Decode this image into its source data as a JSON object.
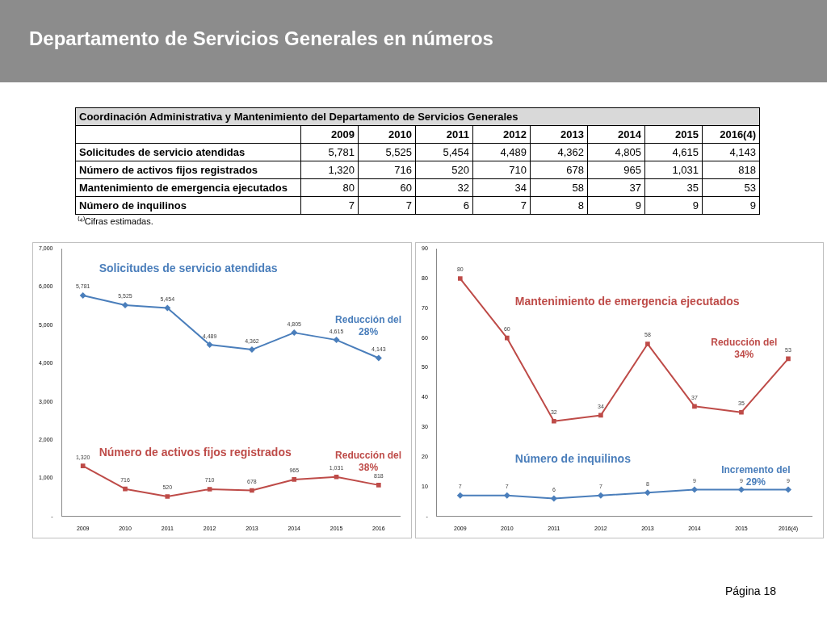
{
  "chart_data": [
    {
      "type": "line",
      "title": "Departamento de Servicios Generales en números",
      "subtitle": "Coordinación Administrativa y Mantenimiento del Departamento de Servicios Generales",
      "categories": [
        "2009",
        "2010",
        "2011",
        "2012",
        "2013",
        "2014",
        "2015",
        "2016"
      ],
      "series": [
        {
          "name": "Solicitudes de servicio atendidas",
          "color": "#4a7ebb",
          "marker": "diamond",
          "values": [
            5781,
            5525,
            5454,
            4489,
            4362,
            4805,
            4615,
            4143
          ],
          "value_labels": [
            "5,781",
            "5,525",
            "5,454",
            "4,489",
            "4,362",
            "4,805",
            "4,615",
            "4,143"
          ]
        },
        {
          "name": "Número de activos fijos registrados",
          "color": "#be4b48",
          "marker": "square",
          "values": [
            1320,
            716,
            520,
            710,
            678,
            965,
            1031,
            818
          ],
          "value_labels": [
            "1,320",
            "716",
            "520",
            "710",
            "678",
            "965",
            "1,031",
            "818"
          ]
        }
      ],
      "ylim": [
        0,
        7000
      ],
      "yticks": [
        {
          "value": 0,
          "label": "-"
        },
        {
          "value": 1000,
          "label": "1,000"
        },
        {
          "value": 2000,
          "label": "2,000"
        },
        {
          "value": 3000,
          "label": "3,000"
        },
        {
          "value": 4000,
          "label": "4,000"
        },
        {
          "value": 5000,
          "label": "5,000"
        },
        {
          "value": 6000,
          "label": "6,000"
        },
        {
          "value": 7000,
          "label": "7,000"
        }
      ],
      "grid": false,
      "legend": false,
      "annotations": [
        "Reducción del 28%",
        "Reducción del 38%",
        "⁽⁴⁾Cifras estimadas.",
        "Página 18"
      ]
    },
    {
      "type": "line",
      "categories": [
        "2009",
        "2010",
        "2011",
        "2012",
        "2013",
        "2014",
        "2015",
        "2016(4)"
      ],
      "series": [
        {
          "name": "Mantenimiento de emergencia ejecutados",
          "color": "#be4b48",
          "marker": "square",
          "values": [
            80,
            60,
            32,
            34,
            58,
            37,
            35,
            53
          ],
          "value_labels": [
            "80",
            "60",
            "32",
            "34",
            "58",
            "37",
            "35",
            "53"
          ]
        },
        {
          "name": "Número de inquilinos",
          "color": "#4a7ebb",
          "marker": "diamond",
          "values": [
            7,
            7,
            6,
            7,
            8,
            9,
            9,
            9
          ],
          "value_labels": [
            "7",
            "7",
            "6",
            "7",
            "8",
            "9",
            "9",
            "9"
          ]
        }
      ],
      "ylim": [
        0,
        90
      ],
      "yticks": [
        {
          "value": 0,
          "label": "-"
        },
        10,
        20,
        30,
        40,
        50,
        60,
        70,
        80,
        90
      ],
      "grid": false,
      "legend": false,
      "annotations": [
        "Reducción del 34%",
        "Incremento del 29%"
      ]
    }
  ]
}
